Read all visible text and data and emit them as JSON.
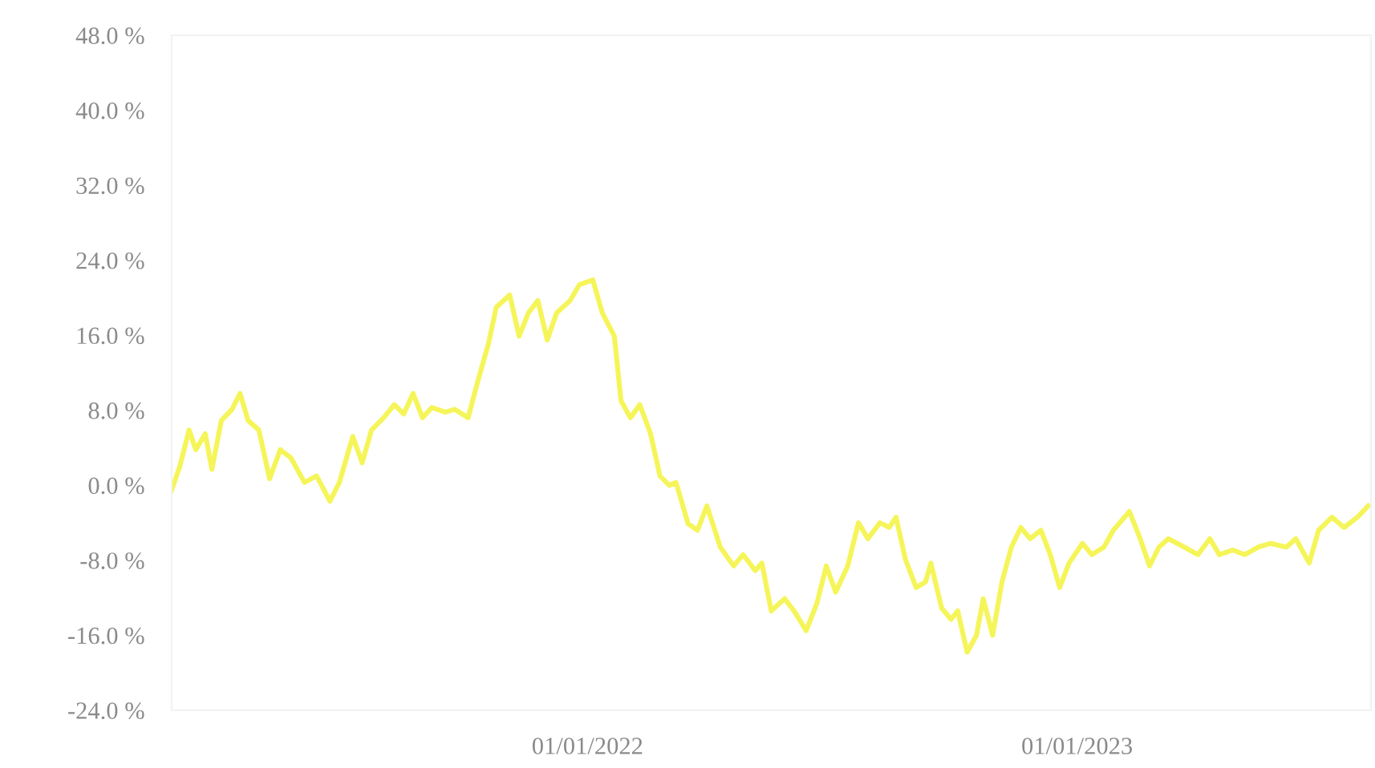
{
  "chart_data": {
    "type": "line",
    "x": [
      "2021-02-25",
      "2021-03-03",
      "2021-03-10",
      "2021-03-15",
      "2021-03-22",
      "2021-03-27",
      "2021-04-03",
      "2021-04-11",
      "2021-04-17",
      "2021-04-23",
      "2021-05-01",
      "2021-05-09",
      "2021-05-17",
      "2021-05-25",
      "2021-06-04",
      "2021-06-13",
      "2021-06-23",
      "2021-06-30",
      "2021-07-10",
      "2021-07-17",
      "2021-07-24",
      "2021-08-02",
      "2021-08-10",
      "2021-08-17",
      "2021-08-24",
      "2021-08-31",
      "2021-09-07",
      "2021-09-17",
      "2021-09-24",
      "2021-10-04",
      "2021-10-11",
      "2021-10-19",
      "2021-10-25",
      "2021-11-04",
      "2021-11-11",
      "2021-11-18",
      "2021-11-25",
      "2021-12-02",
      "2021-12-09",
      "2021-12-19",
      "2021-12-26",
      "2022-01-05",
      "2022-01-12",
      "2022-01-21",
      "2022-01-26",
      "2022-02-02",
      "2022-02-09",
      "2022-02-17",
      "2022-02-24",
      "2022-03-03",
      "2022-03-08",
      "2022-03-17",
      "2022-03-24",
      "2022-03-31",
      "2022-04-10",
      "2022-04-20",
      "2022-04-27",
      "2022-05-06",
      "2022-05-11",
      "2022-05-18",
      "2022-05-28",
      "2022-06-04",
      "2022-06-13",
      "2022-06-21",
      "2022-06-28",
      "2022-07-05",
      "2022-07-14",
      "2022-07-22",
      "2022-07-29",
      "2022-08-07",
      "2022-08-14",
      "2022-08-19",
      "2022-08-26",
      "2022-09-03",
      "2022-09-10",
      "2022-09-14",
      "2022-09-22",
      "2022-09-29",
      "2022-10-04",
      "2022-10-11",
      "2022-10-18",
      "2022-10-23",
      "2022-10-30",
      "2022-11-06",
      "2022-11-13",
      "2022-11-20",
      "2022-11-27",
      "2022-12-05",
      "2022-12-12",
      "2022-12-19",
      "2022-12-26",
      "2023-01-05",
      "2023-01-12",
      "2023-01-21",
      "2023-01-28",
      "2023-02-09",
      "2023-02-17",
      "2023-02-24",
      "2023-03-03",
      "2023-03-10",
      "2023-03-22",
      "2023-04-01",
      "2023-04-10",
      "2023-04-17",
      "2023-04-27",
      "2023-05-06",
      "2023-05-16",
      "2023-05-25",
      "2023-06-06",
      "2023-06-13",
      "2023-06-23",
      "2023-06-30",
      "2023-07-10",
      "2023-07-19",
      "2023-07-29",
      "2023-08-06"
    ],
    "series": [
      {
        "color": "#f5f55a",
        "values": [
          -0.5,
          2,
          5.9,
          3.8,
          5.5,
          1.7,
          6.9,
          8.1,
          9.8,
          6.9,
          5.9,
          0.7,
          3.8,
          2.9,
          0.3,
          1.0,
          -1.7,
          0.3,
          5.2,
          2.4,
          5.9,
          7.2,
          8.6,
          7.6,
          9.8,
          7.2,
          8.3,
          7.8,
          8.1,
          7.2,
          11,
          15,
          19,
          20.3,
          15.9,
          18.4,
          19.7,
          15.5,
          18.4,
          19.7,
          21.4,
          21.9,
          18.4,
          15.9,
          9,
          7.2,
          8.6,
          5.5,
          1.0,
          0,
          0.3,
          -4.1,
          -4.8,
          -2.2,
          -6.6,
          -8.6,
          -7.4,
          -9.1,
          -8.3,
          -13.4,
          -12.1,
          -13.4,
          -15.5,
          -12.6,
          -8.6,
          -11.4,
          -8.6,
          -4,
          -5.7,
          -4,
          -4.5,
          -3.4,
          -7.9,
          -10.9,
          -10.3,
          -8.3,
          -13.1,
          -14.3,
          -13.4,
          -17.8,
          -16,
          -12.1,
          -16,
          -10.3,
          -6.6,
          -4.5,
          -5.7,
          -4.8,
          -7.4,
          -10.9,
          -8.3,
          -6.2,
          -7.4,
          -6.6,
          -4.8,
          -2.8,
          -5.7,
          -8.6,
          -6.6,
          -5.7,
          -6.6,
          -7.4,
          -5.7,
          -7.4,
          -6.9,
          -7.4,
          -6.6,
          -6.2,
          -6.6,
          -5.7,
          -8.3,
          -4.8,
          -3.4,
          -4.5,
          -3.4,
          -2.2
        ]
      }
    ],
    "xlim": [
      "2021-02-25",
      "2023-08-08"
    ],
    "xticks": [
      {
        "value": "2022-01-01",
        "label": "01/01/2022"
      },
      {
        "value": "2023-01-01",
        "label": "01/01/2023"
      }
    ],
    "ylim": [
      -24,
      48
    ],
    "yticks": [
      {
        "value": -24,
        "label": "-24.0 %"
      },
      {
        "value": -16,
        "label": "-16.0 %"
      },
      {
        "value": -8,
        "label": "-8.0 %"
      },
      {
        "value": 0,
        "label": "0.0 %"
      },
      {
        "value": 8,
        "label": "8.0 %"
      },
      {
        "value": 16,
        "label": "16.0 %"
      },
      {
        "value": 24,
        "label": "24.0 %"
      },
      {
        "value": 32,
        "label": "32.0 %"
      },
      {
        "value": 40,
        "label": "40.0 %"
      },
      {
        "value": 48,
        "label": "48.0 %"
      }
    ],
    "grid": false,
    "legend": false
  }
}
